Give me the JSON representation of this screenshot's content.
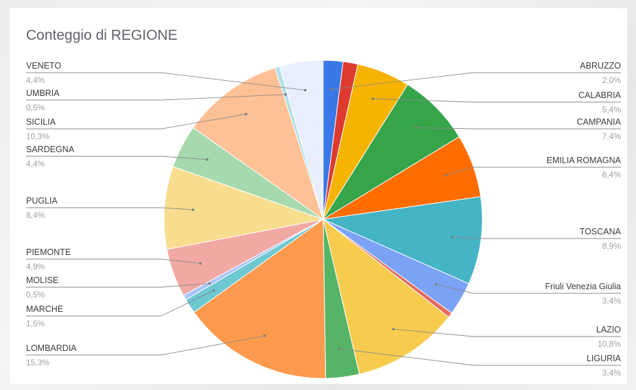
{
  "chart_data": {
    "type": "pie",
    "title": "Conteggio di REGIONE",
    "slices": [
      {
        "label": "ABRUZZO",
        "pct_label": "2,0%",
        "value": 2.0,
        "color": "#3b78e7"
      },
      {
        "label": "",
        "pct_label": "",
        "value": 1.5,
        "color": "#dd3b30"
      },
      {
        "label": "CALABRIA",
        "pct_label": "5,4%",
        "value": 5.4,
        "color": "#f6b400"
      },
      {
        "label": "CAMPANIA",
        "pct_label": "7,4%",
        "value": 7.4,
        "color": "#36a54a"
      },
      {
        "label": "EMILIA ROMAGNA",
        "pct_label": "6,4%",
        "value": 6.4,
        "color": "#ff6d01"
      },
      {
        "label": "TOSCANA",
        "pct_label": "8,9%",
        "value": 8.9,
        "color": "#45b4c4"
      },
      {
        "label": "Friuli Venezia Giulia",
        "pct_label": "3,4%",
        "value": 3.4,
        "color": "#7aa2f5"
      },
      {
        "label": "",
        "pct_label": "",
        "value": 0.5,
        "color": "#e46a5e"
      },
      {
        "label": "LAZIO",
        "pct_label": "10,8%",
        "value": 10.8,
        "color": "#f7cc4e"
      },
      {
        "label": "LIGURIA",
        "pct_label": "3,4%",
        "value": 3.4,
        "color": "#56b466"
      },
      {
        "label": "LOMBARDIA",
        "pct_label": "15,3%",
        "value": 15.3,
        "color": "#fd9a4d"
      },
      {
        "label": "MARCHE",
        "pct_label": "1,5%",
        "value": 1.5,
        "color": "#6ec8d2"
      },
      {
        "label": "MOLISE",
        "pct_label": "0,5%",
        "value": 0.5,
        "color": "#a9c5f7"
      },
      {
        "label": "PIEMONTE",
        "pct_label": "4,9%",
        "value": 4.9,
        "color": "#f2a8a3"
      },
      {
        "label": "PUGLIA",
        "pct_label": "8,4%",
        "value": 8.4,
        "color": "#f8dd8e"
      },
      {
        "label": "SARDEGNA",
        "pct_label": "4,4%",
        "value": 4.4,
        "color": "#a6d9ad"
      },
      {
        "label": "SICILIA",
        "pct_label": "10,3%",
        "value": 10.3,
        "color": "#fdc196"
      },
      {
        "label": "UMBRIA",
        "pct_label": "0,5%",
        "value": 0.5,
        "color": "#b4e0e6"
      },
      {
        "label": "VENETO",
        "pct_label": "4,4%",
        "value": 4.4,
        "color": "#e8eefc"
      }
    ]
  }
}
